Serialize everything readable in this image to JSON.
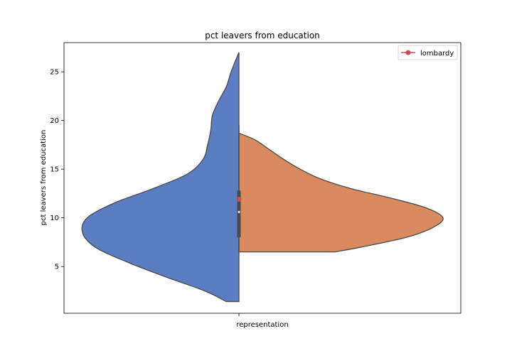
{
  "chart_data": {
    "type": "violin",
    "title": "pct leavers from education",
    "xlabel": "",
    "ylabel": "pct leavers from education",
    "categories": [
      "representation"
    ],
    "ylim": [
      0.2,
      28.0
    ],
    "yticks": [
      5,
      10,
      15,
      20,
      25
    ],
    "grid": false,
    "split": true,
    "series": [
      {
        "side": "left",
        "color": "#5b7ec2",
        "density_profile": [
          {
            "y": 1.4,
            "w": 0.08
          },
          {
            "y": 2.5,
            "w": 0.22
          },
          {
            "y": 4.0,
            "w": 0.48
          },
          {
            "y": 5.5,
            "w": 0.72
          },
          {
            "y": 7.0,
            "w": 0.92
          },
          {
            "y": 8.5,
            "w": 1.0
          },
          {
            "y": 10.0,
            "w": 0.97
          },
          {
            "y": 11.5,
            "w": 0.8
          },
          {
            "y": 13.0,
            "w": 0.55
          },
          {
            "y": 14.5,
            "w": 0.33
          },
          {
            "y": 16.0,
            "w": 0.23
          },
          {
            "y": 17.5,
            "w": 0.2
          },
          {
            "y": 19.0,
            "w": 0.18
          },
          {
            "y": 20.5,
            "w": 0.17
          },
          {
            "y": 22.0,
            "w": 0.13
          },
          {
            "y": 23.5,
            "w": 0.08
          },
          {
            "y": 25.0,
            "w": 0.05
          },
          {
            "y": 27.0,
            "w": 0.0
          }
        ]
      },
      {
        "side": "right",
        "color": "#d98a5f",
        "density_profile": [
          {
            "y": 6.5,
            "w": 0.47
          },
          {
            "y": 7.0,
            "w": 0.6
          },
          {
            "y": 8.0,
            "w": 0.82
          },
          {
            "y": 9.0,
            "w": 0.95
          },
          {
            "y": 10.0,
            "w": 1.0
          },
          {
            "y": 11.0,
            "w": 0.92
          },
          {
            "y": 12.0,
            "w": 0.75
          },
          {
            "y": 13.0,
            "w": 0.55
          },
          {
            "y": 14.0,
            "w": 0.4
          },
          {
            "y": 15.0,
            "w": 0.3
          },
          {
            "y": 16.0,
            "w": 0.22
          },
          {
            "y": 17.0,
            "w": 0.15
          },
          {
            "y": 18.0,
            "w": 0.08
          },
          {
            "y": 18.7,
            "w": 0.0
          }
        ]
      }
    ],
    "box": {
      "whisker_low": 6.5,
      "q1": 8.0,
      "median": 10.6,
      "q3": 12.8,
      "whisker_high": 19.5
    },
    "overlay_point": {
      "name": "lombardy",
      "y": 11.9,
      "color": "#c44e52"
    },
    "legend": {
      "placement": "top-right",
      "entries": [
        "lombardy"
      ]
    }
  }
}
